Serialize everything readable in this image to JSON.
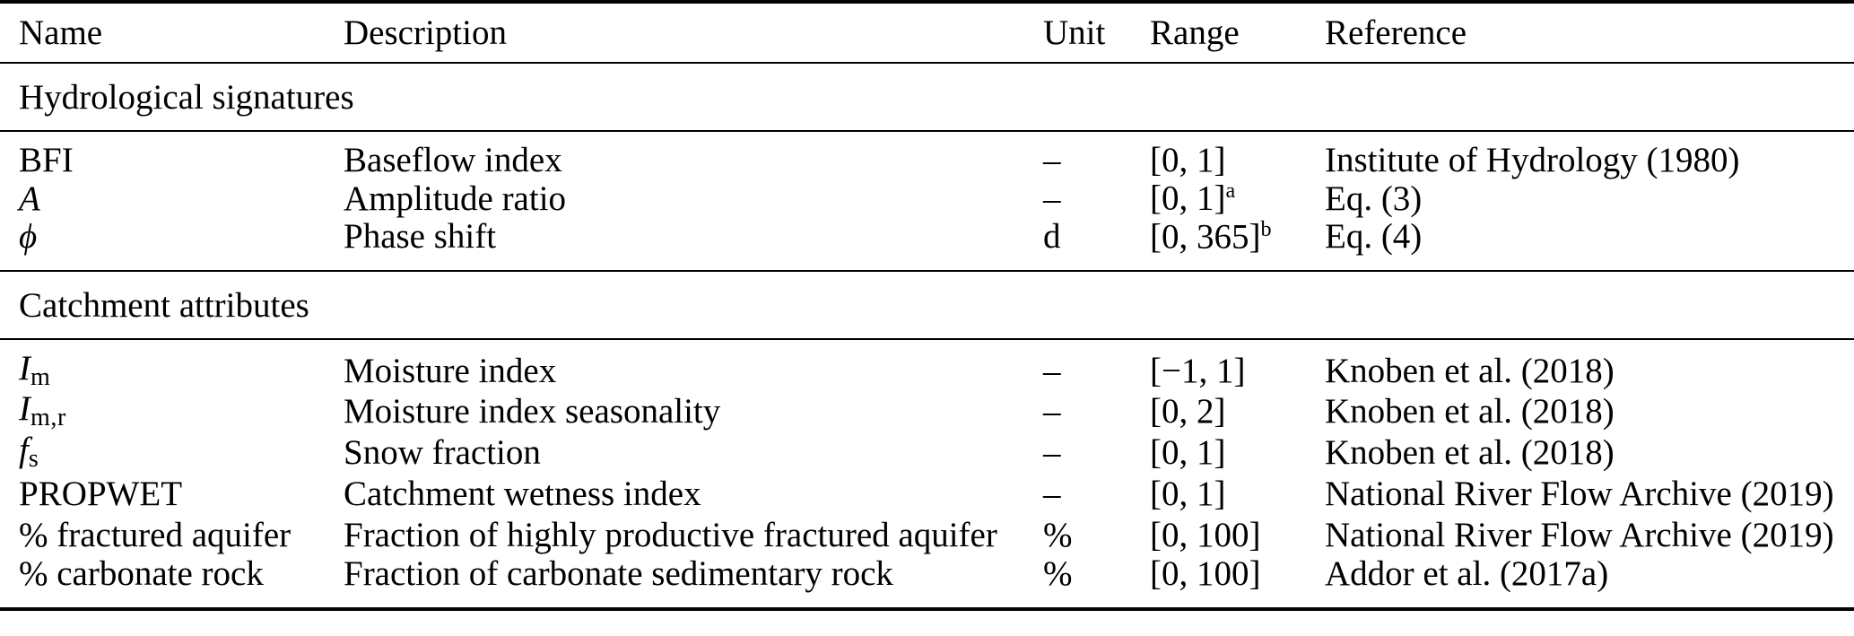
{
  "table": {
    "columns": [
      "Name",
      "Description",
      "Unit",
      "Range",
      "Reference"
    ],
    "sections": [
      {
        "title": "Hydrological signatures",
        "rows": [
          {
            "name": "BFI",
            "name_sub": "",
            "description": "Baseflow index",
            "unit": "–",
            "range": "[0, 1]",
            "range_sup": "",
            "reference": "Institute of Hydrology (1980)"
          },
          {
            "name": "A",
            "name_sub": "",
            "description": "Amplitude ratio",
            "unit": "–",
            "range": "[0, 1]",
            "range_sup": "a",
            "reference": "Eq. (3)"
          },
          {
            "name": "ϕ",
            "name_sub": "",
            "description": "Phase shift",
            "unit": "d",
            "range": "[0, 365]",
            "range_sup": "b",
            "reference": "Eq. (4)"
          }
        ]
      },
      {
        "title": "Catchment attributes",
        "rows": [
          {
            "name": "I",
            "name_sub": "m",
            "description": "Moisture index",
            "unit": "–",
            "range": "[−1, 1]",
            "range_sup": "",
            "reference": "Knoben et al. (2018)"
          },
          {
            "name": "I",
            "name_sub": "m,r",
            "description": "Moisture index seasonality",
            "unit": "–",
            "range": "[0, 2]",
            "range_sup": "",
            "reference": "Knoben et al. (2018)"
          },
          {
            "name": "f",
            "name_sub": "s",
            "description": "Snow fraction",
            "unit": "–",
            "range": "[0, 1]",
            "range_sup": "",
            "reference": "Knoben et al. (2018)"
          },
          {
            "name": "PROPWET",
            "name_sub": "",
            "description": "Catchment wetness index",
            "unit": "–",
            "range": "[0, 1]",
            "range_sup": "",
            "reference": "National River Flow Archive (2019)"
          },
          {
            "name": "% fractured aquifer",
            "name_sub": "",
            "description": "Fraction of highly productive fractured aquifer",
            "unit": "%",
            "range": "[0, 100]",
            "range_sup": "",
            "reference": "National River Flow Archive (2019)"
          },
          {
            "name": "% carbonate rock",
            "name_sub": "",
            "description": "Fraction of carbonate sedimentary rock",
            "unit": "%",
            "range": "[0, 100]",
            "range_sup": "",
            "reference": "Addor et al. (2017a)"
          }
        ]
      }
    ]
  }
}
